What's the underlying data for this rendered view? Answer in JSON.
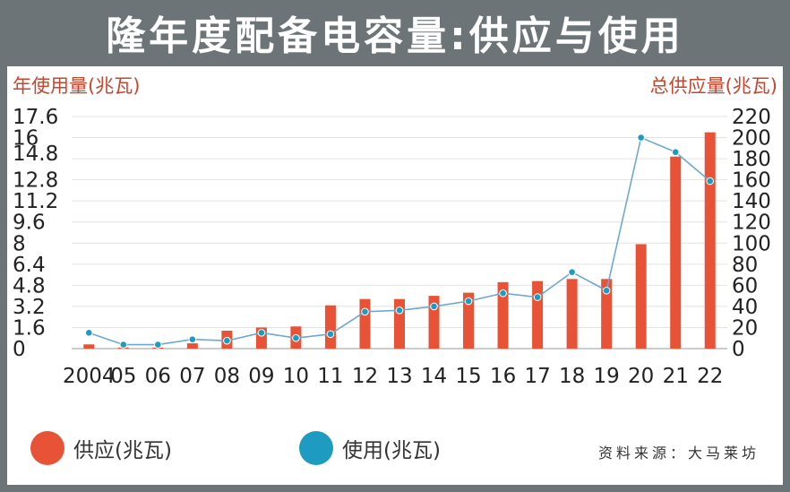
{
  "title": "隆年度配备电容量:供应与使用",
  "source": "资料来源：大马莱坊",
  "colors": {
    "supply": "#e85236",
    "use": "#1d9bc1",
    "line": "#6da9cf",
    "accent_text": "#c8452e"
  },
  "legend": {
    "supply": "供应(兆瓦)",
    "use": "使用(兆瓦)"
  },
  "chart_data": {
    "type": "bar",
    "categories": [
      "2004",
      "05",
      "06",
      "07",
      "08",
      "09",
      "10",
      "11",
      "12",
      "13",
      "14",
      "15",
      "16",
      "17",
      "18",
      "19",
      "20",
      "21",
      "22"
    ],
    "series": [
      {
        "name": "供应(兆瓦)",
        "type": "bar",
        "axis": "right",
        "values": [
          4,
          1,
          1,
          5,
          17,
          20,
          21,
          41,
          47,
          47,
          50,
          53,
          63,
          64,
          66,
          66,
          99,
          182,
          205
        ]
      },
      {
        "name": "使用(兆瓦)",
        "type": "line",
        "axis": "left",
        "values": [
          1.2,
          0.3,
          0.3,
          0.7,
          0.6,
          1.2,
          0.8,
          1.1,
          2.8,
          2.9,
          3.2,
          3.6,
          4.2,
          3.9,
          5.8,
          4.4,
          16.0,
          14.9,
          12.7
        ]
      }
    ],
    "y_left": {
      "label": "年使用量(兆瓦)",
      "ticks": [
        "0",
        "1.6",
        "3.2",
        "4.8",
        "6.4",
        "8",
        "9.6",
        "11.2",
        "12.8",
        "14.8",
        "16",
        "17.6"
      ],
      "ylim": [
        0,
        17.6
      ]
    },
    "y_right": {
      "label": "总供应量(兆瓦)",
      "ticks": [
        "0",
        "20",
        "40",
        "60",
        "80",
        "100",
        "120",
        "140",
        "160",
        "180",
        "200",
        "220"
      ],
      "ylim": [
        0,
        220
      ]
    },
    "grid": true,
    "legend_position": "bottom"
  }
}
